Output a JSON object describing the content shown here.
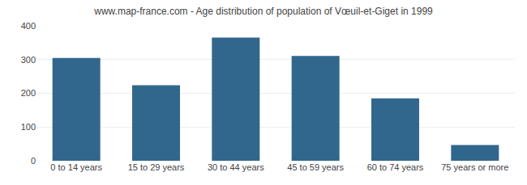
{
  "chart_data": {
    "type": "bar",
    "title": "www.map-france.com - Age distribution of population of Vœuil-et-Giget in 1999",
    "categories": [
      "0 to 14 years",
      "15 to 29 years",
      "30 to 44 years",
      "45 to 59 years",
      "60 to 74 years",
      "75 years or more"
    ],
    "values": [
      305,
      224,
      365,
      311,
      185,
      47
    ],
    "color": "#31678c",
    "ylim": [
      0,
      400
    ],
    "yticks": [
      0,
      100,
      200,
      300,
      400
    ],
    "grid": true
  }
}
